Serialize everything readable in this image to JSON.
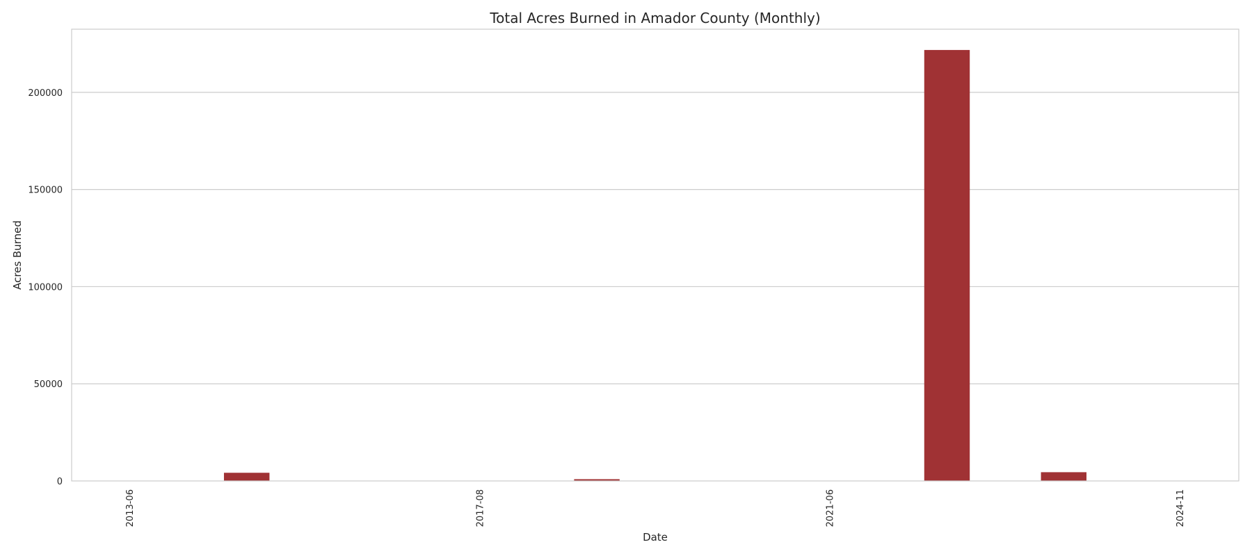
{
  "chart_data": {
    "type": "bar",
    "title": "Total Acres Burned in Amador County (Monthly)",
    "xlabel": "Date",
    "ylabel": "Acres Burned",
    "ylim": [
      0,
      232500
    ],
    "yticks": [
      0,
      50000,
      100000,
      150000,
      200000
    ],
    "xtick_labels": [
      "2013-06",
      "2017-08",
      "2021-06",
      "2024-11"
    ],
    "bar_color": "#a03234",
    "grid": true,
    "legend": "none",
    "slots": [
      {
        "label": "2013-06",
        "value": 0
      },
      {
        "label": "",
        "value": 4200
      },
      {
        "label": "",
        "value": 0
      },
      {
        "label": "2017-08",
        "value": 0
      },
      {
        "label": "",
        "value": 900
      },
      {
        "label": "",
        "value": 0
      },
      {
        "label": "2021-06",
        "value": 0
      },
      {
        "label": "",
        "value": 221800
      },
      {
        "label": "",
        "value": 4500
      },
      {
        "label": "2024-11",
        "value": 0
      }
    ]
  }
}
